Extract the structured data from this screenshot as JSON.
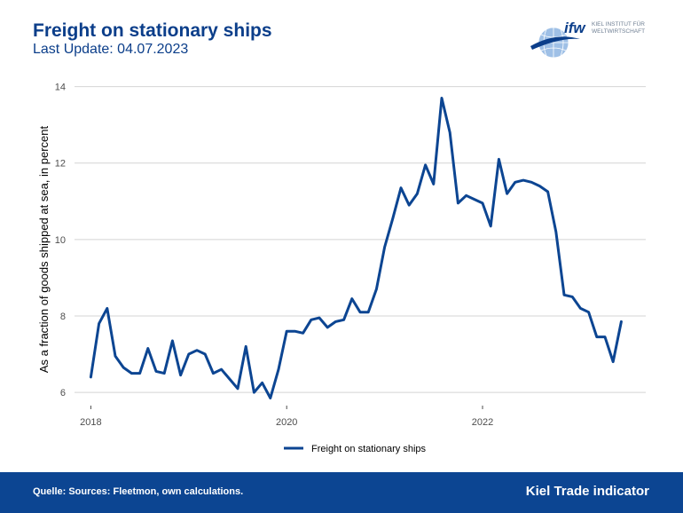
{
  "header": {
    "title": "Freight on stationary ships",
    "subtitle": "Last Update: 04.07.2023"
  },
  "logo": {
    "mark": "ifw",
    "line1": "KIEL INSTITUT FÜR",
    "line2": "WELTWIRTSCHAFT"
  },
  "footer": {
    "source": "Quelle: Sources: Fleetmon, own calculations.",
    "brand": "Kiel Trade indicator"
  },
  "colors": {
    "brand_blue": "#0b3e8a",
    "line": "#0c4592",
    "grid": "#d4d4d4",
    "footer_bg": "#0c4592"
  },
  "chart_data": {
    "type": "line",
    "title": "Freight on stationary ships",
    "subtitle": "Last Update: 04.07.2023",
    "xlabel": "",
    "ylabel": "As a fraction of goods shipped at sea, in percent",
    "xlim": [
      "2017-11",
      "2023-09"
    ],
    "ylim": [
      5.7,
      14.2
    ],
    "x_ticks": [
      "2018",
      "2020",
      "2022"
    ],
    "y_ticks": [
      6,
      8,
      10,
      12,
      14
    ],
    "grid": "horizontal",
    "legend_position": "bottom",
    "x": [
      "2018-01",
      "2018-02",
      "2018-03",
      "2018-04",
      "2018-05",
      "2018-06",
      "2018-07",
      "2018-08",
      "2018-09",
      "2018-10",
      "2018-11",
      "2018-12",
      "2019-01",
      "2019-02",
      "2019-03",
      "2019-04",
      "2019-05",
      "2019-06",
      "2019-07",
      "2019-08",
      "2019-09",
      "2019-10",
      "2019-11",
      "2019-12",
      "2020-01",
      "2020-02",
      "2020-03",
      "2020-04",
      "2020-05",
      "2020-06",
      "2020-07",
      "2020-08",
      "2020-09",
      "2020-10",
      "2020-11",
      "2020-12",
      "2021-01",
      "2021-02",
      "2021-03",
      "2021-04",
      "2021-05",
      "2021-06",
      "2021-07",
      "2021-08",
      "2021-09",
      "2021-10",
      "2021-11",
      "2021-12",
      "2022-01",
      "2022-02",
      "2022-03",
      "2022-04",
      "2022-05",
      "2022-06",
      "2022-07",
      "2022-08",
      "2022-09",
      "2022-10",
      "2022-11",
      "2022-12",
      "2023-01",
      "2023-02",
      "2023-03",
      "2023-04",
      "2023-05",
      "2023-06"
    ],
    "series": [
      {
        "name": "Freight on stationary ships",
        "values": [
          6.4,
          7.8,
          8.2,
          6.95,
          6.65,
          6.5,
          6.5,
          7.15,
          6.55,
          6.5,
          7.35,
          6.45,
          7.0,
          7.1,
          7.0,
          6.5,
          6.6,
          6.35,
          6.1,
          7.2,
          6.0,
          6.25,
          5.85,
          6.6,
          7.6,
          7.6,
          7.55,
          7.9,
          7.95,
          7.7,
          7.85,
          7.9,
          8.45,
          8.1,
          8.1,
          8.7,
          9.8,
          10.55,
          11.35,
          10.9,
          11.2,
          11.95,
          11.45,
          13.7,
          12.8,
          10.95,
          11.15,
          11.05,
          10.95,
          10.35,
          12.1,
          11.2,
          11.5,
          11.55,
          11.5,
          11.4,
          11.25,
          10.2,
          8.55,
          8.5,
          8.2,
          8.1,
          7.45,
          7.45,
          6.8,
          7.85
        ]
      }
    ]
  }
}
